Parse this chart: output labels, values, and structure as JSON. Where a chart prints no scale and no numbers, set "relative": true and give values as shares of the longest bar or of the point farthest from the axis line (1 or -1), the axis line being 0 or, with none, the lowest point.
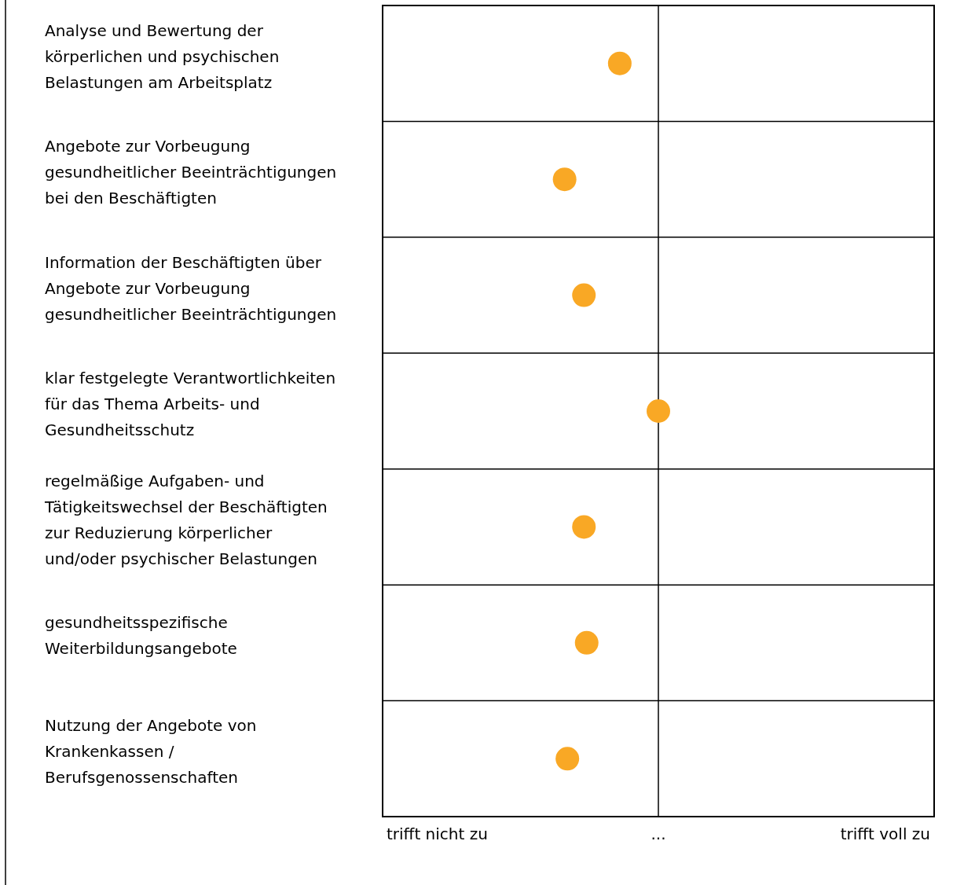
{
  "chart_data": {
    "type": "scatter",
    "orientation": "horizontal",
    "relative": true,
    "categories": [
      "Analyse und Bewertung der körperlichen und psychischen Belastungen am Arbeitsplatz",
      "Angebote zur Vorbeugung gesundheitlicher Beeinträchtigungen bei den Beschäftigten",
      "Information der Beschäftigten über Angebote zur Vorbeugung gesundheitlicher Beeinträchtigungen",
      "klar festgelegte Verantwortlichkeiten für das Thema Arbeits- und Gesundheitsschutz",
      "regelmäßige Aufgaben- und Tätigkeitswechsel der Beschäftigten zur Reduzierung körperlicher und/oder psychischer Belastungen",
      "gesundheitsspezifische Weiterbildungsangebote",
      "Nutzung der Angebote von Krankenkassen / Berufsgenossenschaften"
    ],
    "series": [
      {
        "color": "#f9a825",
        "values": [
          0.86,
          0.66,
          0.73,
          1,
          0.73,
          0.74,
          0.67
        ]
      }
    ],
    "annotations": [
      "trifft nicht zu",
      "...",
      "trifft voll zu"
    ],
    "grid": true,
    "marker": "circle"
  }
}
